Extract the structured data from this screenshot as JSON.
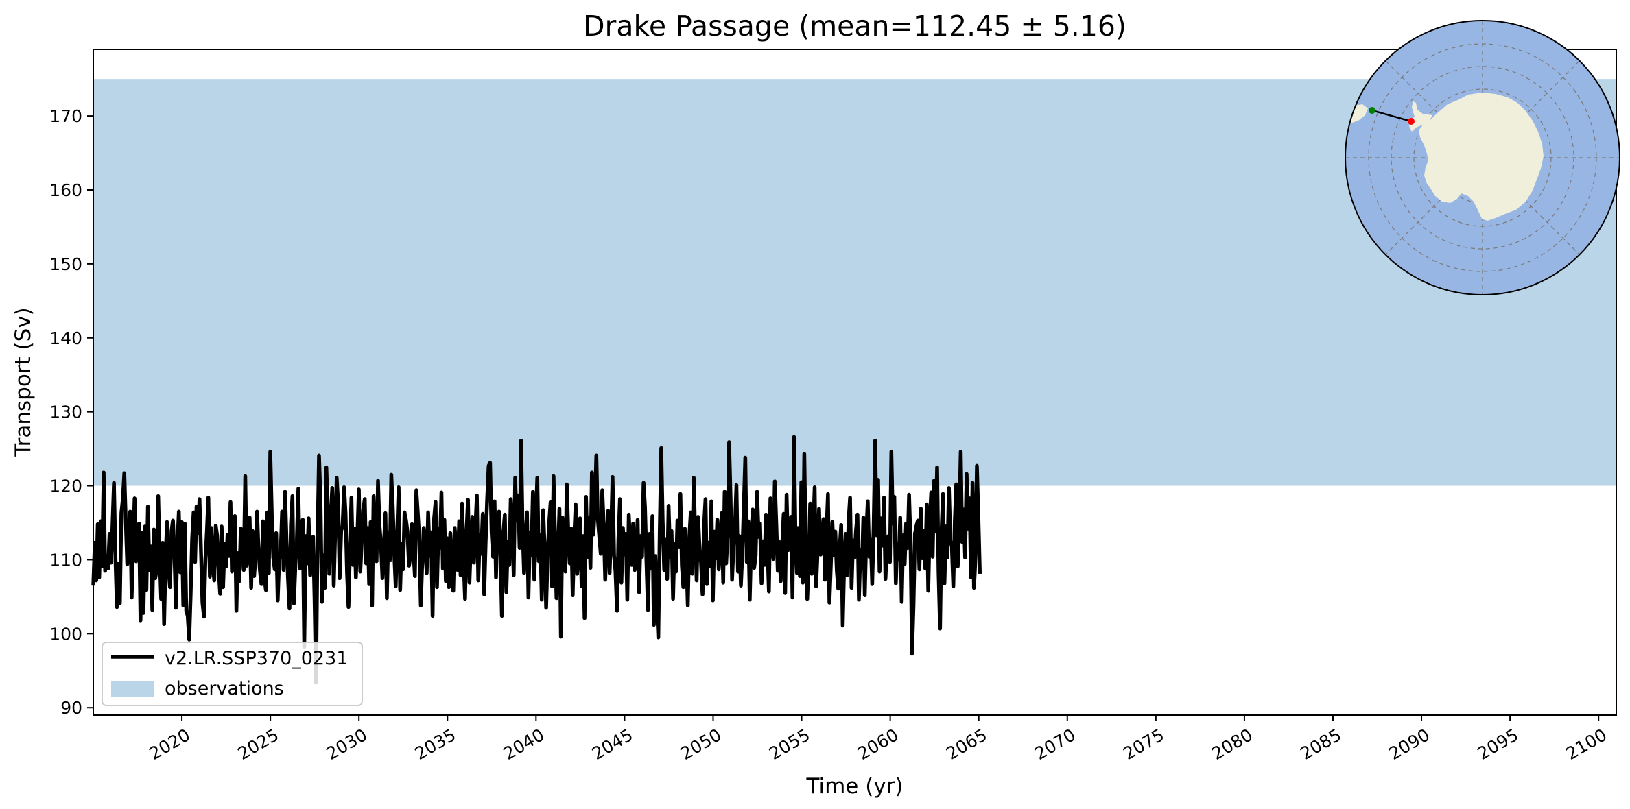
{
  "chart_data": {
    "type": "line",
    "title": "Drake Passage (mean=112.45 ± 5.16)",
    "xlabel": "Time (yr)",
    "ylabel": "Transport (Sv)",
    "xlim": [
      2015,
      2101
    ],
    "ylim": [
      89,
      179
    ],
    "x_ticks": [
      2020,
      2025,
      2030,
      2035,
      2040,
      2045,
      2050,
      2055,
      2060,
      2065,
      2070,
      2075,
      2080,
      2085,
      2090,
      2095,
      2100
    ],
    "y_ticks": [
      90,
      100,
      110,
      120,
      130,
      140,
      150,
      160,
      170
    ],
    "legend": {
      "position": "lower-left"
    },
    "grid": false,
    "observations": {
      "name": "observations",
      "low": 120,
      "high": 175,
      "color": "#bad5e8"
    },
    "series": [
      {
        "name": "v2.LR.SSP370_0231",
        "color": "#000000",
        "sampling": "monthly",
        "x_start": 2015.0,
        "x_step": 0.0833,
        "values": [
          106.5,
          112.3,
          107.2,
          114.8,
          107.6,
          115.2,
          109.1,
          121.8,
          108.5,
          110.3,
          108.8,
          113.5,
          109.6,
          114.7,
          120.4,
          110.2,
          103.6,
          109.5,
          104.1,
          116.3,
          118.2,
          121.7,
          115.3,
          109.4,
          111.8,
          116.5,
          104.9,
          112.1,
          118.3,
          109.8,
          110.7,
          114.9,
          101.8,
          113.6,
          102.8,
          114.5,
          105.9,
          117.2,
          108.6,
          111.8,
          103.2,
          114.1,
          107.5,
          108.8,
          118.6,
          110.4,
          104.7,
          112.3,
          101.3,
          110.5,
          115.1,
          108.7,
          106.3,
          113.9,
          115.3,
          110.8,
          103.5,
          112.2,
          116.5,
          108.3,
          115.1,
          103.8,
          114.9,
          103.1,
          102.4,
          99.2,
          105.3,
          112.9,
          116.4,
          109.7,
          117.2,
          113.6,
          118.2,
          111.1,
          104.2,
          102.3,
          110.1,
          113.8,
          118.4,
          107.7,
          114.3,
          109.6,
          107.2,
          114.6,
          113.2,
          108.5,
          105.4,
          114.5,
          106.3,
          112.2,
          109.1,
          113.4,
          110.5,
          117.8,
          108.4,
          112.6,
          115.9,
          103.1,
          110.9,
          107.1,
          114.2,
          112.8,
          108.6,
          121.3,
          109.2,
          111.5,
          115.7,
          106.2,
          113.9,
          107.8,
          110.3,
          116.5,
          111.4,
          108.4,
          106.7,
          115.2,
          107.6,
          105.9,
          116.4,
          108.2,
          124.6,
          116.1,
          110.3,
          108.7,
          113.6,
          104.5,
          109.9,
          110.7,
          116.5,
          108.6,
          119.2,
          112.3,
          107.5,
          103.4,
          114.8,
          118.6,
          104.1,
          109.3,
          112.5,
          119.6,
          108.8,
          114.7,
          115.4,
          98.2,
          113.2,
          109.5,
          115.6,
          107.9,
          110.4,
          113.1,
          104.9,
          93.4,
          112.6,
          124.1,
          118.3,
          104.3,
          110.6,
          106.2,
          122.5,
          115.8,
          108.1,
          116.2,
          119.7,
          106.5,
          113.8,
          121.1,
          117.6,
          107.5,
          113.9,
          114.6,
          119.8,
          116.3,
          108.2,
          103.6,
          111.7,
          118.4,
          109.3,
          114.2,
          107.6,
          113.1,
          119.5,
          108.4,
          112.7,
          116.8,
          118.2,
          109.5,
          114.3,
          106.7,
          115.1,
          103.8,
          118.6,
          112.2,
          109.8,
          120.7,
          114.6,
          112.1,
          107.5,
          111.8,
          116.3,
          104.8,
          113.6,
          109.9,
          121.5,
          117.2,
          110.8,
          106.4,
          113.5,
          119.8,
          105.9,
          112.2,
          108.7,
          116.4,
          115.3,
          113.8,
          109.2,
          110.6,
          114.8,
          111.3,
          107.8,
          119.4,
          116.2,
          112.9,
          103.8,
          109.7,
          114.3,
          111.6,
          108.2,
          116.4,
          110.5,
          113.7,
          102.4,
          115.5,
          117.8,
          106.3,
          114.2,
          111.6,
          119.1,
          108.8,
          115.4,
          107.1,
          112.9,
          106.3,
          113.6,
          109.4,
          105.8,
          114.3,
          111.5,
          108.6,
          115.2,
          107.9,
          117.6,
          110.2,
          104.7,
          113.8,
          118.1,
          106.9,
          112.5,
          115.8,
          109.6,
          114.1,
          118.7,
          107.2,
          113.4,
          110.8,
          116.2,
          105.3,
          112.6,
          118.1,
          122.7,
          123.1,
          113.8,
          110.4,
          117.9,
          107.6,
          114.3,
          116.5,
          111.2,
          102.4,
          113.8,
          116.1,
          105.6,
          112.4,
          109.3,
          118.2,
          114.6,
          107.9,
          121.1,
          115.3,
          118.7,
          111.6,
          126.1,
          114.5,
          108.2,
          112.8,
          116.4,
          104.9,
          113.7,
          110.6,
          119.2,
          107.3,
          115.6,
          121.1,
          109.8,
          113.4,
          104.6,
          116.7,
          111.2,
          103.5,
          110.8,
          114.9,
          117.8,
          106.4,
          121.3,
          113.2,
          104.8,
          110.6,
          116.9,
          99.6,
          115.7,
          111.3,
          108.4,
          120.2,
          113.6,
          109.5,
          114.2,
          105.2,
          112.8,
          117.5,
          108.1,
          110.9,
          115.6,
          106.4,
          113.2,
          102.1,
          118.5,
          110.3,
          115.7,
          108.9,
          121.8,
          113.4,
          117.2,
          124.1,
          115.6,
          113.1,
          110.8,
          119.4,
          114.7,
          107.3,
          112.9,
          116.6,
          108.2,
          113.5,
          121.2,
          110.6,
          108.4,
          103.1,
          112.8,
          118.2,
          106.9,
          114.3,
          110.7,
          113.5,
          104.6,
          116.1,
          111.8,
          109.3,
          114.9,
          108.6,
          111.8,
          115.4,
          105.6,
          113.2,
          110.4,
          120.4,
          117.1,
          109.6,
          103.2,
          113.5,
          108.8,
          115.9,
          101.2,
          110.5,
          104.3,
          99.5,
          113.7,
          125.1,
          115.2,
          108.6,
          112.8,
          107.4,
          117.3,
          110.4,
          113.9,
          104.7,
          112.1,
          108.4,
          115.3,
          111.7,
          118.9,
          109.2,
          106.3,
          114.2,
          110.5,
          103.8,
          112.9,
          116.4,
          108.1,
          121.1,
          113.5,
          107.2,
          115.8,
          111.4,
          109.6,
          105.3,
          114.6,
          118.2,
          106.7,
          112.3,
          109.1,
          117.9,
          104.5,
          113.8,
          110.2,
          115.4,
          108.7,
          112.1,
          116.3,
          106.9,
          119.2,
          109.5,
          113.4,
          125.9,
          118.6,
          107.3,
          111.8,
          114.6,
          120.1,
          108.4,
          113.2,
          106.5,
          110.9,
          117.5,
          123.8,
          109.7,
          115.2,
          104.6,
          112.3,
          116.8,
          108.9,
          110.6,
          119.2,
          113.1,
          114.9,
          106.8,
          112.5,
          109.3,
          116.1,
          111.6,
          105.7,
          118.3,
          113.4,
          110.1,
          120.6,
          114.8,
          108.5,
          112.4,
          107.1,
          111.9,
          116.2,
          105.5,
          118.8,
          111.3,
          113.7,
          115.8,
          104.9,
          126.6,
          113.5,
          108.2,
          114.3,
          107.8,
          120.5,
          106.9,
          124.3,
          111.4,
          104.7,
          110.2,
          117.6,
          108.1,
          113.5,
          119.8,
          106.4,
          111.2,
          116.9,
          110.7,
          112.3,
          115.5,
          107.3,
          113.8,
          118.9,
          104.2,
          109.6,
          115.1,
          110.6,
          113.8,
          108.5,
          106.1,
          111.8,
          114.7,
          101.1,
          109.4,
          113.5,
          107.9,
          115.3,
          118.4,
          106.2,
          112.6,
          110.3,
          113.9,
          116.1,
          104.6,
          111.3,
          108.8,
          115.7,
          105.2,
          113.6,
          117.9,
          110.4,
          112.8,
          106.7,
          114.5,
          126.1,
          113.3,
          120.8,
          108.4,
          115.6,
          111.9,
          118.4,
          107.4,
          111.8,
          113.2,
          109.7,
          124.6,
          114.9,
          118.5,
          106.8,
          112.2,
          110.1,
          115.7,
          104.3,
          113.3,
          109.4,
          114.9,
          111.6,
          118.8,
          112.3,
          97.3,
          103.9,
          113.5,
          114.6,
          115.3,
          108.7,
          116.9,
          110.2,
          113.9,
          108.8,
          117.5,
          105.8,
          114.6,
          119.1,
          110.4,
          120.7,
          113.8,
          122.5,
          108.3,
          100.7,
          113.6,
          118.9,
          106.8,
          114.5,
          110.3,
          119.7,
          112.6,
          111.8,
          106.4,
          115.2,
          120.2,
          109.1,
          114.7,
          124.6,
          112.4,
          116.8,
          110.3,
          121.6,
          114.2,
          118.3,
          107.6,
          120.4,
          106.2,
          110.2,
          122.7,
          115.6,
          108.1
        ]
      }
    ]
  },
  "inset_map": {
    "ocean_color": "#98b6e3",
    "land_color": "#efefdb",
    "marker_start_color": "#008000",
    "marker_end_color": "#ff0000"
  }
}
